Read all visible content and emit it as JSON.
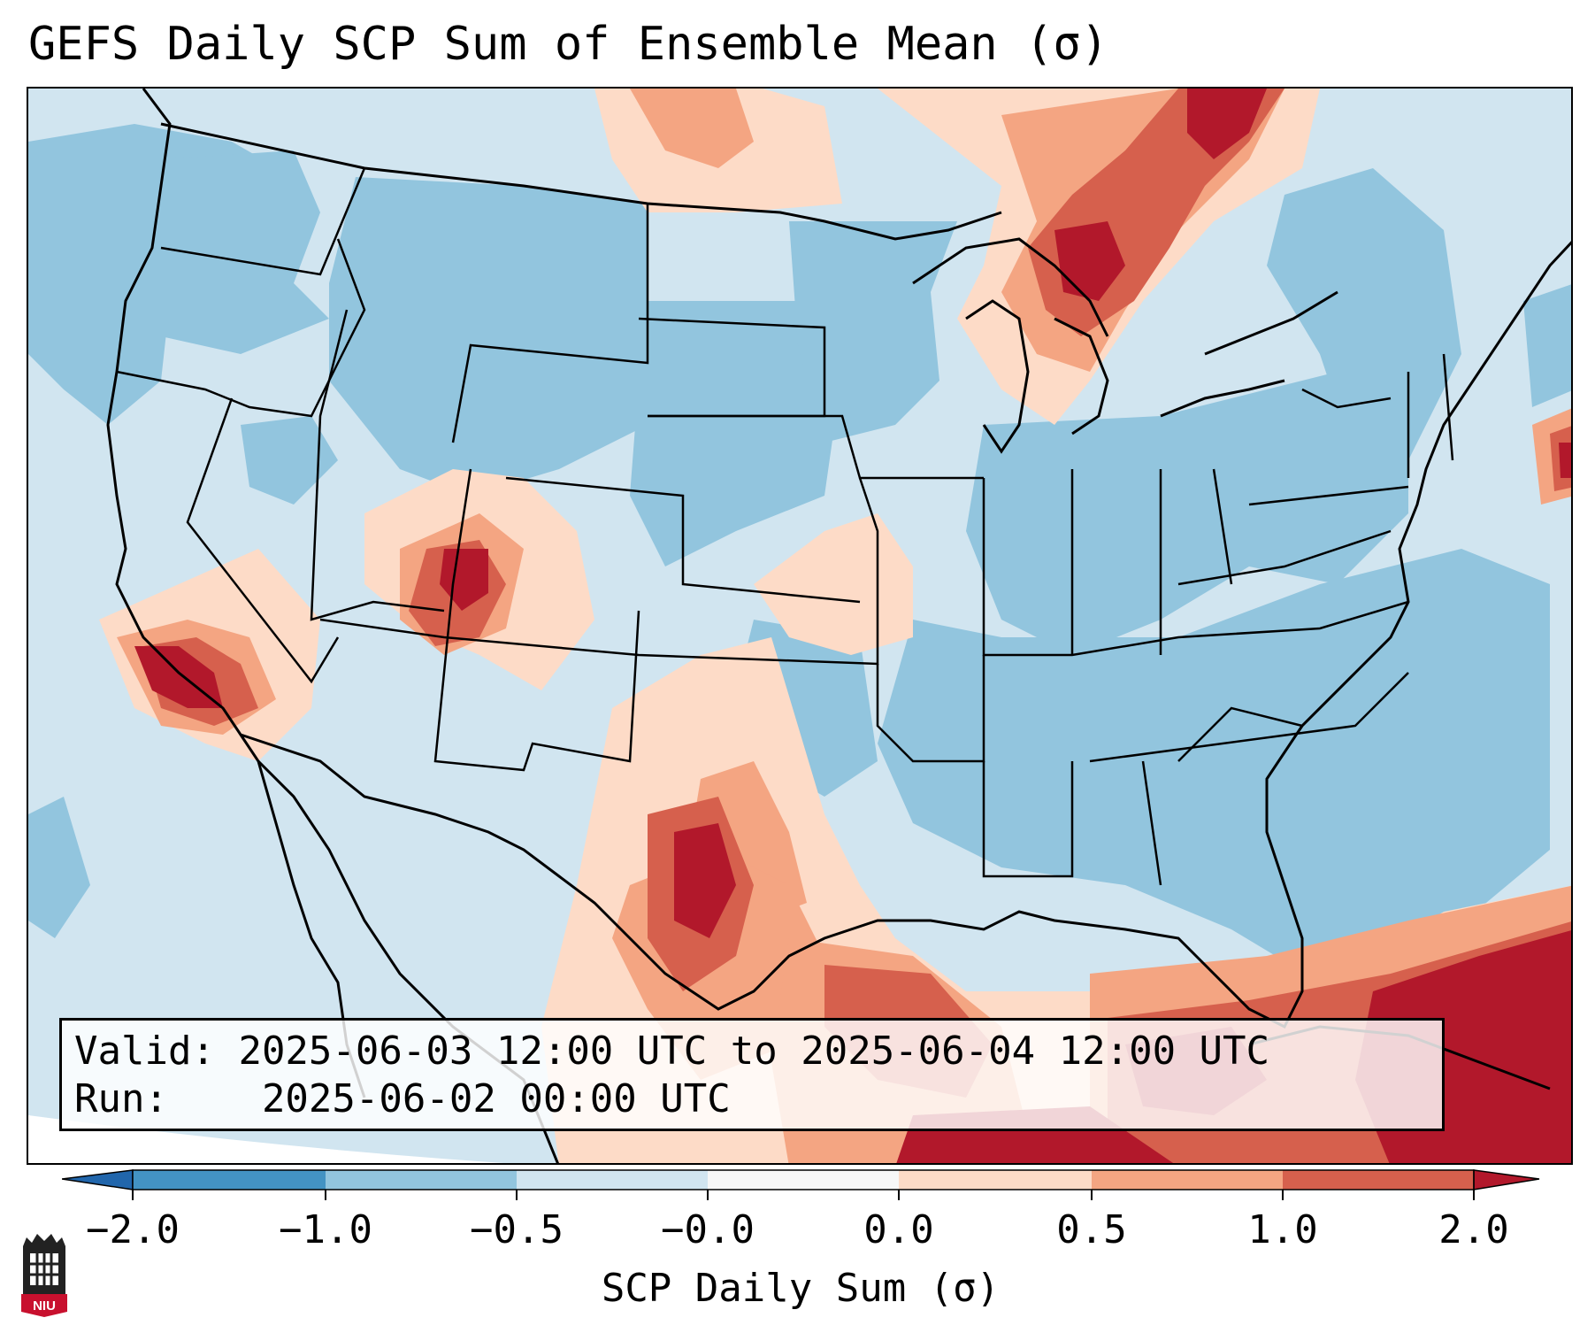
{
  "title": "GEFS Daily SCP Sum of Ensemble Mean (σ)",
  "info": {
    "valid_label": "Valid:",
    "valid_text": "2025-06-03 12:00 UTC to 2025-06-04 12:00 UTC",
    "run_label": "Run:",
    "run_text": "2025-06-02 00:00 UTC"
  },
  "colorbar": {
    "label": "SCP Daily Sum (σ)",
    "ticks": [
      "−2.0",
      "−1.0",
      "−0.5",
      "−0.0",
      "0.0",
      "0.5",
      "1.0",
      "2.0"
    ],
    "colors": [
      "#4393c3",
      "#92c5de",
      "#d1e5f0",
      "#f7f7f7",
      "#fddbc7",
      "#f4a582",
      "#d6604d",
      "#b2182b"
    ],
    "under_color": "#2166ac",
    "over_color": "#b2182b"
  },
  "logo": {
    "text": "NIU",
    "icon": "niu-logo-icon"
  },
  "map": {
    "region": "Continental United States",
    "field_levels": {
      "high_positive": "#b2182b",
      "positive": "#d6604d",
      "slight_positive": "#f4a582",
      "weak_positive": "#fddbc7",
      "weak_negative": "#d1e5f0",
      "negative": "#92c5de"
    }
  }
}
